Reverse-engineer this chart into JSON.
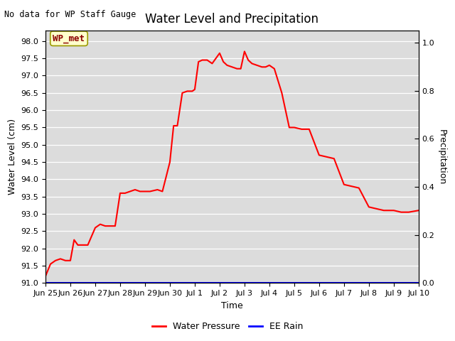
{
  "title": "Water Level and Precipitation",
  "subtitle": "No data for WP Staff Gauge",
  "xlabel": "Time",
  "ylabel_left": "Water Level (cm)",
  "ylabel_right": "Precipitation",
  "legend_label_box": "WP_met",
  "legend_entries": [
    "Water Pressure",
    "EE Rain"
  ],
  "legend_colors": [
    "red",
    "blue"
  ],
  "bg_color": "#dcdcdc",
  "ylim_left": [
    91.0,
    98.3
  ],
  "ylim_right": [
    0.0,
    1.05
  ],
  "yticks_left": [
    91.0,
    91.5,
    92.0,
    92.5,
    93.0,
    93.5,
    94.0,
    94.5,
    95.0,
    95.5,
    96.0,
    96.5,
    97.0,
    97.5,
    98.0
  ],
  "yticks_right": [
    0.0,
    0.2,
    0.4,
    0.6,
    0.8,
    1.0
  ],
  "xtick_labels": [
    "Jun 25",
    "Jun 26",
    "Jun 27",
    "Jun 28",
    "Jun 29",
    "Jun 30",
    "Jul 1",
    "Jul 2",
    "Jul 3",
    "Jul 4",
    "Jul 5",
    "Jul 6",
    "Jul 7",
    "Jul 8",
    "Jul 9",
    "Jul 10"
  ],
  "line_color": "red",
  "line_width": 1.5,
  "wp_x": [
    0,
    0.2,
    0.4,
    0.6,
    0.8,
    1.0,
    1.15,
    1.3,
    1.5,
    1.7,
    2.0,
    2.2,
    2.4,
    2.6,
    2.8,
    3.0,
    3.2,
    3.4,
    3.6,
    3.8,
    4.0,
    4.2,
    4.5,
    4.7,
    5.0,
    5.15,
    5.3,
    5.5,
    5.7,
    5.9,
    6.0,
    6.15,
    6.3,
    6.5,
    6.7,
    7.0,
    7.15,
    7.3,
    7.5,
    7.7,
    7.85,
    8.0,
    8.15,
    8.3,
    8.5,
    8.7,
    8.85,
    9.0,
    9.2,
    9.5,
    9.8,
    10.0,
    10.3,
    10.6,
    11.0,
    11.3,
    11.6,
    12.0,
    12.3,
    12.6,
    13.0,
    13.3,
    13.6,
    14.0,
    14.3,
    14.6,
    15.0
  ],
  "wp_y": [
    91.2,
    91.55,
    91.65,
    91.7,
    91.65,
    91.65,
    92.25,
    92.1,
    92.1,
    92.1,
    92.6,
    92.7,
    92.65,
    92.65,
    92.65,
    93.6,
    93.6,
    93.65,
    93.7,
    93.65,
    93.65,
    93.65,
    93.7,
    93.65,
    94.5,
    95.55,
    95.55,
    96.5,
    96.55,
    96.55,
    96.6,
    97.4,
    97.45,
    97.45,
    97.35,
    97.65,
    97.4,
    97.3,
    97.25,
    97.2,
    97.2,
    97.7,
    97.45,
    97.35,
    97.3,
    97.25,
    97.25,
    97.3,
    97.2,
    96.5,
    95.5,
    95.5,
    95.45,
    95.45,
    94.7,
    94.65,
    94.6,
    93.85,
    93.8,
    93.75,
    93.2,
    93.15,
    93.1,
    93.1,
    93.05,
    93.05,
    93.1
  ]
}
